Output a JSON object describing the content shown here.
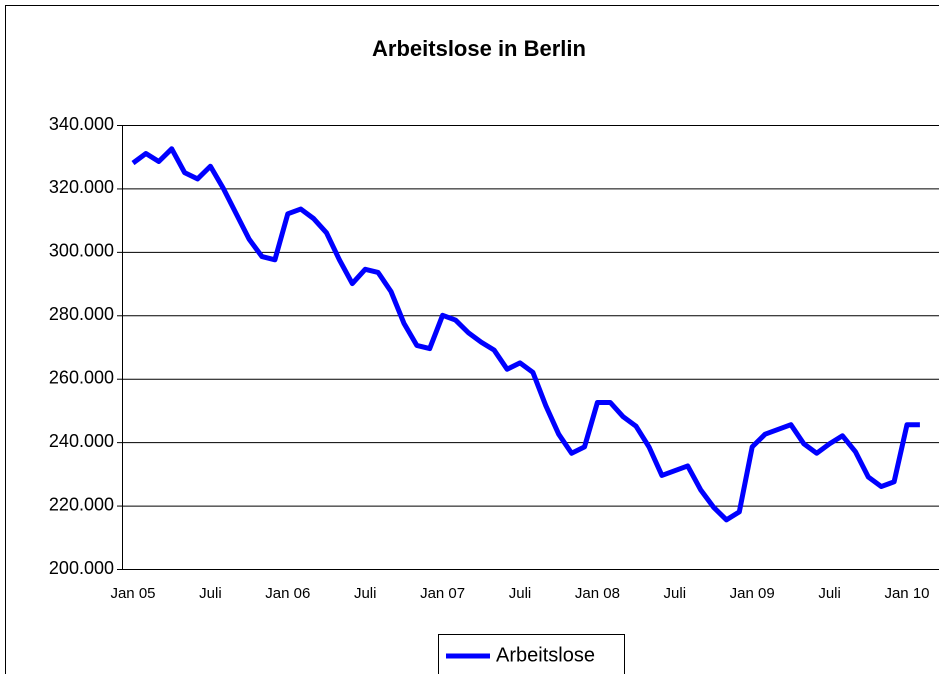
{
  "chart_data": {
    "type": "line",
    "title": "Arbeitslose in Berlin",
    "categories": [
      "Jan 05",
      null,
      null,
      null,
      null,
      null,
      "Juli",
      null,
      null,
      null,
      null,
      null,
      "Jan 06",
      null,
      null,
      null,
      null,
      null,
      "Juli",
      null,
      null,
      null,
      null,
      null,
      "Jan 07",
      null,
      null,
      null,
      null,
      null,
      "Juli",
      null,
      null,
      null,
      null,
      null,
      "Jan 08",
      null,
      null,
      null,
      null,
      null,
      "Juli",
      null,
      null,
      null,
      null,
      null,
      "Jan 09",
      null,
      null,
      null,
      null,
      null,
      "Juli",
      null,
      null,
      null,
      null,
      null,
      "Jan 10",
      null
    ],
    "series": [
      {
        "name": "Arbeitslose",
        "color": "#0000ff",
        "values": [
          328000,
          331000,
          328500,
          332500,
          325000,
          323000,
          327000,
          320000,
          312000,
          304000,
          298500,
          297500,
          312000,
          313500,
          310500,
          306000,
          297500,
          290000,
          294500,
          293500,
          287500,
          277500,
          270500,
          269500,
          280000,
          278500,
          274500,
          271500,
          269000,
          263000,
          265000,
          262000,
          251500,
          242500,
          236500,
          238500,
          252500,
          252500,
          248000,
          245000,
          238500,
          229500,
          231000,
          232500,
          225000,
          219500,
          215500,
          218000,
          238500,
          242500,
          244000,
          245500,
          239500,
          236500,
          239500,
          242000,
          237000,
          229000,
          226000,
          227500,
          245500,
          245500
        ]
      }
    ],
    "ylim": [
      200000,
      340000
    ],
    "yticks": [
      {
        "value": 200000,
        "label": "200.000"
      },
      {
        "value": 220000,
        "label": "220.000"
      },
      {
        "value": 240000,
        "label": "240.000"
      },
      {
        "value": 260000,
        "label": "260.000"
      },
      {
        "value": 280000,
        "label": "280.000"
      },
      {
        "value": 300000,
        "label": "300.000"
      },
      {
        "value": 320000,
        "label": "320.000"
      },
      {
        "value": 340000,
        "label": "340.000"
      }
    ],
    "grid": true,
    "legend": "bottom"
  }
}
